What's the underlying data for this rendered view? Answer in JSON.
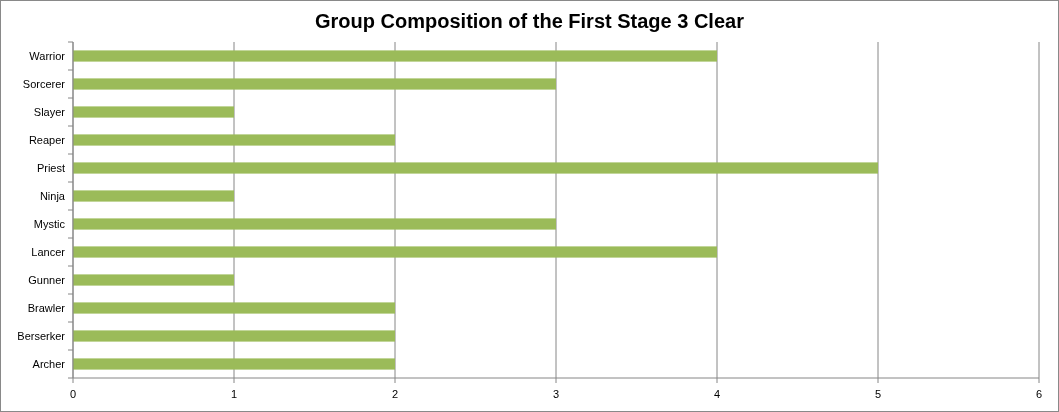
{
  "chart_data": {
    "type": "bar",
    "orientation": "horizontal",
    "title": "Group Composition of the First Stage 3 Clear",
    "categories": [
      "Warrior",
      "Sorcerer",
      "Slayer",
      "Reaper",
      "Priest",
      "Ninja",
      "Mystic",
      "Lancer",
      "Gunner",
      "Brawler",
      "Berserker",
      "Archer"
    ],
    "values": [
      4,
      3,
      1,
      2,
      5,
      1,
      3,
      4,
      1,
      2,
      2,
      2
    ],
    "color": "#9bbb59",
    "xlim": [
      0,
      6
    ],
    "xticks": [
      0,
      1,
      2,
      3,
      4,
      5,
      6
    ],
    "grid": "x"
  }
}
